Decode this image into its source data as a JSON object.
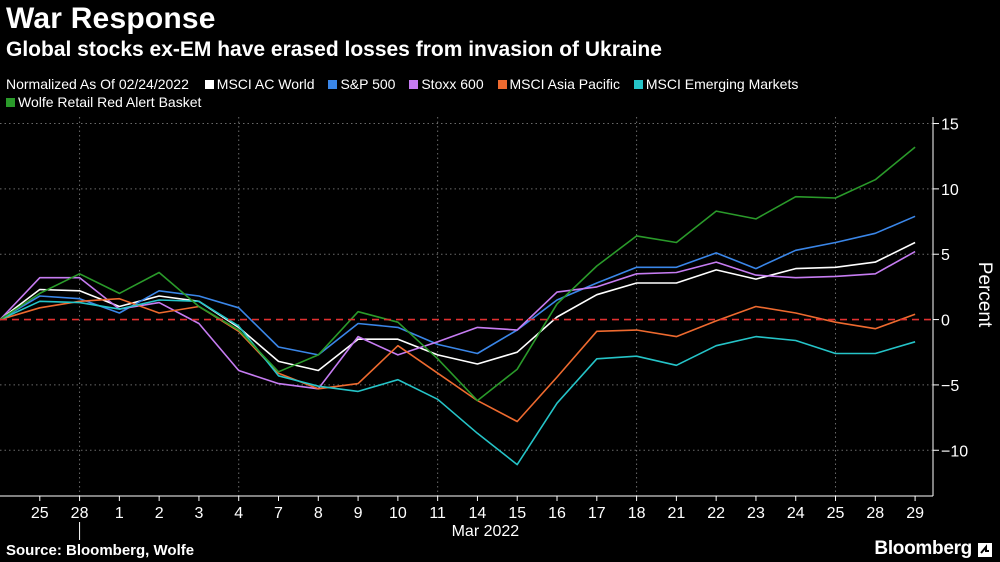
{
  "header": {
    "title": "War Response",
    "subtitle": "Global stocks ex-EM have erased losses from invasion of Ukraine"
  },
  "legend": {
    "note": "Normalized As Of 02/24/2022",
    "items": [
      {
        "label": "MSCI AC World",
        "color": "#ffffff"
      },
      {
        "label": "S&P 500",
        "color": "#3a86e8"
      },
      {
        "label": "Stoxx 600",
        "color": "#c67cf2"
      },
      {
        "label": "MSCI Asia Pacific",
        "color": "#ee6a2f"
      },
      {
        "label": "MSCI Emerging Markets",
        "color": "#25c4c8"
      },
      {
        "label": "Wolfe Retail Red Alert Basket",
        "color": "#2a9a2a"
      }
    ]
  },
  "chart_data": {
    "type": "line",
    "ylabel": "Percent",
    "xlabel": "",
    "month_label": "Mar 2022",
    "ylim": [
      -13.5,
      15.5
    ],
    "yticks": [
      15,
      10,
      5,
      0,
      -5,
      -10
    ],
    "zero_line_color": "#e03030",
    "grid": true,
    "categories": [
      "24",
      "25",
      "28",
      "1",
      "2",
      "3",
      "4",
      "7",
      "8",
      "9",
      "10",
      "11",
      "14",
      "15",
      "16",
      "17",
      "18",
      "21",
      "22",
      "23",
      "24",
      "25",
      "28",
      "29"
    ],
    "tick_labels": [
      "25",
      "28",
      "1",
      "2",
      "3",
      "4",
      "7",
      "8",
      "9",
      "10",
      "11",
      "14",
      "15",
      "16",
      "17",
      "18",
      "21",
      "22",
      "23",
      "24",
      "25",
      "28",
      "29"
    ],
    "series": [
      {
        "name": "MSCI AC World",
        "color": "#ffffff",
        "values": [
          0,
          2.3,
          2.2,
          1.0,
          1.8,
          1.4,
          -0.6,
          -3.2,
          -3.9,
          -1.5,
          -1.5,
          -2.7,
          -3.4,
          -2.5,
          0.2,
          1.9,
          2.8,
          2.8,
          3.8,
          3.1,
          3.9,
          4.0,
          4.4,
          5.9
        ]
      },
      {
        "name": "S&P 500",
        "color": "#3a86e8",
        "values": [
          0,
          1.8,
          1.6,
          0.5,
          2.2,
          1.8,
          0.9,
          -2.1,
          -2.7,
          -0.3,
          -0.6,
          -1.9,
          -2.6,
          -0.8,
          1.5,
          2.8,
          4.0,
          4.0,
          5.1,
          3.9,
          5.3,
          5.9,
          6.6,
          7.9
        ]
      },
      {
        "name": "Stoxx 600",
        "color": "#c67cf2",
        "values": [
          0,
          3.2,
          3.2,
          0.8,
          1.3,
          -0.3,
          -3.9,
          -4.9,
          -5.3,
          -1.3,
          -2.7,
          -1.7,
          -0.6,
          -0.8,
          2.1,
          2.5,
          3.5,
          3.6,
          4.4,
          3.4,
          3.2,
          3.3,
          3.5,
          5.2
        ]
      },
      {
        "name": "MSCI Asia Pacific",
        "color": "#ee6a2f",
        "values": [
          0,
          0.9,
          1.4,
          1.6,
          0.5,
          1.0,
          -0.9,
          -4.1,
          -5.3,
          -4.9,
          -2.0,
          -4.1,
          -6.2,
          -7.8,
          -4.4,
          -0.9,
          -0.8,
          -1.3,
          -0.1,
          1.0,
          0.5,
          -0.2,
          -0.7,
          0.4
        ]
      },
      {
        "name": "MSCI Emerging Markets",
        "color": "#25c4c8",
        "values": [
          0,
          1.4,
          1.3,
          0.8,
          1.5,
          1.4,
          -0.5,
          -4.3,
          -5.1,
          -5.5,
          -4.6,
          -6.1,
          -8.7,
          -11.1,
          -6.4,
          -3.0,
          -2.8,
          -3.5,
          -2.0,
          -1.3,
          -1.6,
          -2.6,
          -2.6,
          -1.7
        ]
      },
      {
        "name": "Wolfe Retail Red Alert Basket",
        "color": "#2a9a2a",
        "values": [
          0,
          2.0,
          3.5,
          2.0,
          3.6,
          1.0,
          -0.8,
          -4.0,
          -2.7,
          0.6,
          -0.2,
          -3.0,
          -6.2,
          -3.8,
          1.2,
          4.1,
          6.4,
          5.9,
          8.3,
          7.7,
          9.4,
          9.3,
          10.7,
          13.2
        ]
      }
    ]
  },
  "footer": {
    "source": "Source: Bloomberg, Wolfe",
    "brand": "Bloomberg"
  }
}
